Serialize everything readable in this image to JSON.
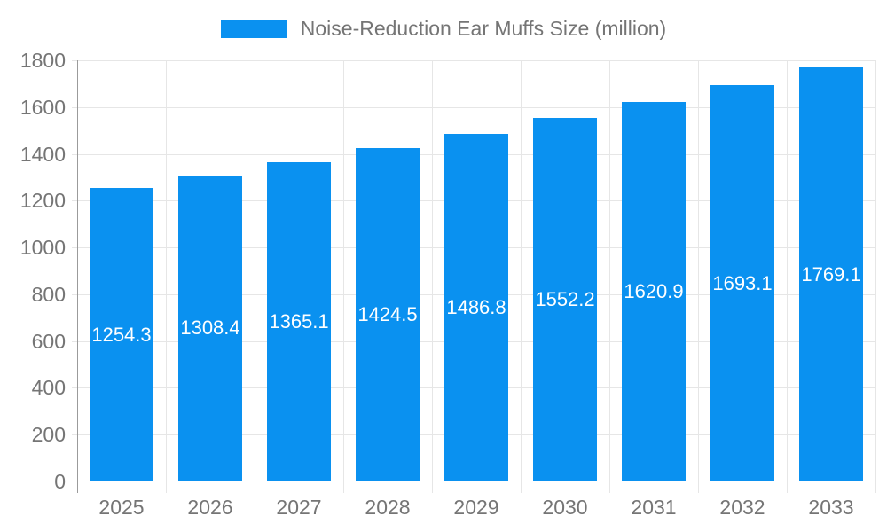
{
  "legend": {
    "label": "Noise-Reduction Ear Muffs Size (million)"
  },
  "chart_data": {
    "type": "bar",
    "title": "Noise-Reduction Ear Muffs Size (million)",
    "categories": [
      "2025",
      "2026",
      "2027",
      "2028",
      "2029",
      "2030",
      "2031",
      "2032",
      "2033"
    ],
    "values": [
      1254.3,
      1308.4,
      1365.1,
      1424.5,
      1486.8,
      1552.2,
      1620.9,
      1693.1,
      1769.1
    ],
    "series_name": "Noise-Reduction Ear Muffs Size (million)",
    "xlabel": "",
    "ylabel": "",
    "ylim": [
      0,
      1800
    ],
    "yticks": [
      0,
      200,
      400,
      600,
      800,
      1000,
      1200,
      1400,
      1600,
      1800
    ],
    "grid": true,
    "legend_position": "top",
    "value_labels": "centered-inside-white",
    "colors": {
      "bar": "#0a91f0",
      "grid": "#e6e6e6",
      "axis": "#9b9b9b",
      "text": "#757575",
      "value_text": "#ffffff",
      "background": "#ffffff"
    }
  }
}
